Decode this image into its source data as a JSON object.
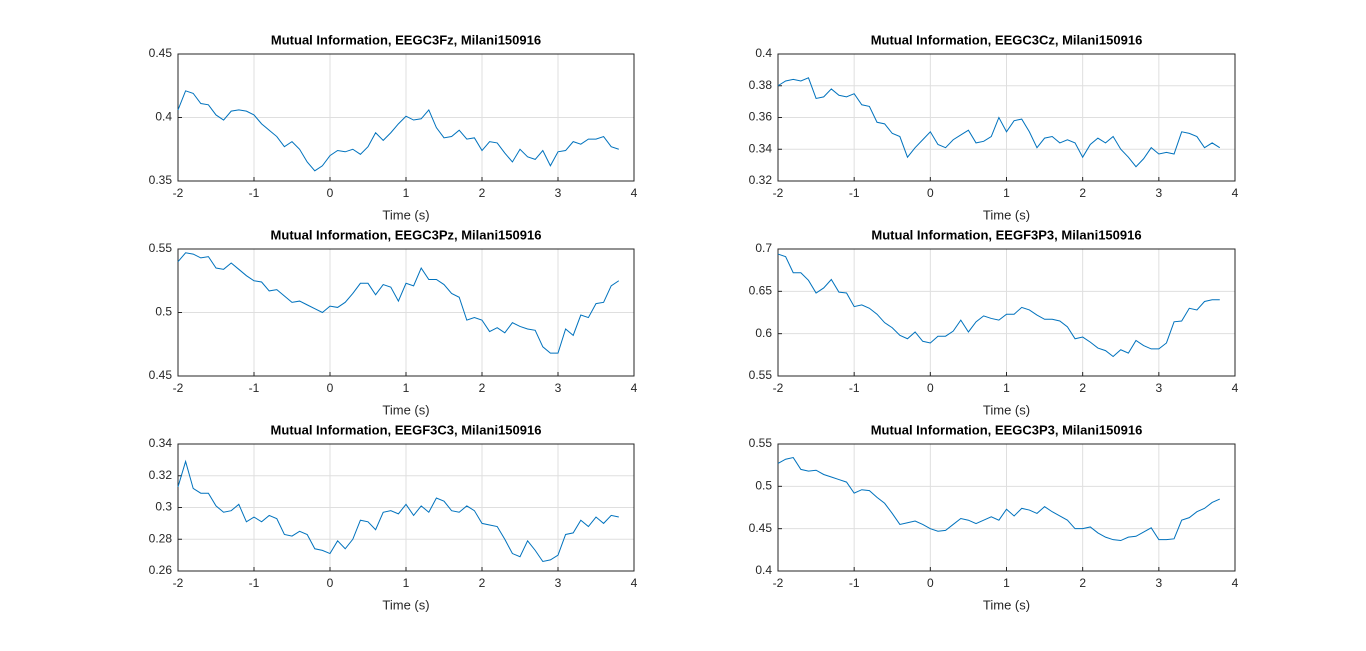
{
  "chart_data": [
    {
      "type": "line",
      "title": "Mutual Information, EEGC3Fz, Milani150916",
      "xlabel": "Time (s)",
      "color": "#0072bd",
      "grid": true,
      "x": [
        -2,
        -1.9,
        -1.8,
        -1.7,
        -1.6,
        -1.5,
        -1.4,
        -1.3,
        -1.2,
        -1.1,
        -1,
        -0.9,
        -0.8,
        -0.7,
        -0.6,
        -0.5,
        -0.4,
        -0.3,
        -0.2,
        -0.1,
        0,
        0.1,
        0.2,
        0.3,
        0.4,
        0.5,
        0.6,
        0.7,
        0.8,
        0.9,
        1,
        1.1,
        1.2,
        1.3,
        1.4,
        1.5,
        1.6,
        1.7,
        1.8,
        1.9,
        2,
        2.1,
        2.2,
        2.3,
        2.4,
        2.5,
        2.6,
        2.7,
        2.8,
        2.9,
        3,
        3.1,
        3.2,
        3.3,
        3.4,
        3.5,
        3.6,
        3.7,
        3.8
      ],
      "values": [
        0.406,
        0.421,
        0.419,
        0.411,
        0.41,
        0.402,
        0.398,
        0.405,
        0.406,
        0.405,
        0.402,
        0.395,
        0.39,
        0.385,
        0.377,
        0.381,
        0.375,
        0.365,
        0.358,
        0.362,
        0.37,
        0.374,
        0.373,
        0.375,
        0.371,
        0.377,
        0.388,
        0.382,
        0.388,
        0.395,
        0.401,
        0.398,
        0.399,
        0.406,
        0.392,
        0.384,
        0.385,
        0.39,
        0.383,
        0.384,
        0.374,
        0.381,
        0.38,
        0.372,
        0.365,
        0.375,
        0.369,
        0.367,
        0.374,
        0.362,
        0.373,
        0.374,
        0.381,
        0.379,
        0.383,
        0.383,
        0.385,
        0.377,
        0.375
      ],
      "xlim": [
        -2,
        4
      ],
      "xticks": [
        -2,
        -1,
        0,
        1,
        2,
        3,
        4
      ],
      "ylim": [
        0.35,
        0.45
      ],
      "yticks": [
        0.35,
        0.4,
        0.45
      ]
    },
    {
      "type": "line",
      "title": "Mutual Information, EEGC3Cz, Milani150916",
      "xlabel": "Time (s)",
      "color": "#0072bd",
      "grid": true,
      "x": [
        -2,
        -1.9,
        -1.8,
        -1.7,
        -1.6,
        -1.5,
        -1.4,
        -1.3,
        -1.2,
        -1.1,
        -1,
        -0.9,
        -0.8,
        -0.7,
        -0.6,
        -0.5,
        -0.4,
        -0.3,
        -0.2,
        -0.1,
        0,
        0.1,
        0.2,
        0.3,
        0.4,
        0.5,
        0.6,
        0.7,
        0.8,
        0.9,
        1,
        1.1,
        1.2,
        1.3,
        1.4,
        1.5,
        1.6,
        1.7,
        1.8,
        1.9,
        2,
        2.1,
        2.2,
        2.3,
        2.4,
        2.5,
        2.6,
        2.7,
        2.8,
        2.9,
        3,
        3.1,
        3.2,
        3.3,
        3.4,
        3.5,
        3.6,
        3.7,
        3.8
      ],
      "values": [
        0.38,
        0.383,
        0.384,
        0.383,
        0.385,
        0.372,
        0.373,
        0.378,
        0.374,
        0.373,
        0.375,
        0.368,
        0.367,
        0.357,
        0.356,
        0.35,
        0.348,
        0.335,
        0.341,
        0.346,
        0.351,
        0.343,
        0.341,
        0.346,
        0.349,
        0.352,
        0.344,
        0.345,
        0.348,
        0.36,
        0.351,
        0.358,
        0.359,
        0.351,
        0.341,
        0.347,
        0.348,
        0.344,
        0.346,
        0.344,
        0.335,
        0.343,
        0.347,
        0.344,
        0.348,
        0.34,
        0.335,
        0.329,
        0.334,
        0.341,
        0.337,
        0.338,
        0.337,
        0.351,
        0.35,
        0.348,
        0.341,
        0.344,
        0.341
      ],
      "xlim": [
        -2,
        4
      ],
      "xticks": [
        -2,
        -1,
        0,
        1,
        2,
        3,
        4
      ],
      "ylim": [
        0.32,
        0.4
      ],
      "yticks": [
        0.32,
        0.34,
        0.36,
        0.38,
        0.4
      ]
    },
    {
      "type": "line",
      "title": "Mutual Information, EEGC3Pz, Milani150916",
      "xlabel": "Time (s)",
      "color": "#0072bd",
      "grid": true,
      "x": [
        -2,
        -1.9,
        -1.8,
        -1.7,
        -1.6,
        -1.5,
        -1.4,
        -1.3,
        -1.2,
        -1.1,
        -1,
        -0.9,
        -0.8,
        -0.7,
        -0.6,
        -0.5,
        -0.4,
        -0.3,
        -0.2,
        -0.1,
        0,
        0.1,
        0.2,
        0.3,
        0.4,
        0.5,
        0.6,
        0.7,
        0.8,
        0.9,
        1,
        1.1,
        1.2,
        1.3,
        1.4,
        1.5,
        1.6,
        1.7,
        1.8,
        1.9,
        2,
        2.1,
        2.2,
        2.3,
        2.4,
        2.5,
        2.6,
        2.7,
        2.8,
        2.9,
        3,
        3.1,
        3.2,
        3.3,
        3.4,
        3.5,
        3.6,
        3.7,
        3.8
      ],
      "values": [
        0.54,
        0.547,
        0.546,
        0.543,
        0.544,
        0.535,
        0.534,
        0.539,
        0.534,
        0.529,
        0.525,
        0.524,
        0.517,
        0.518,
        0.513,
        0.508,
        0.509,
        0.506,
        0.503,
        0.5,
        0.505,
        0.504,
        0.508,
        0.515,
        0.523,
        0.523,
        0.514,
        0.522,
        0.52,
        0.509,
        0.523,
        0.521,
        0.535,
        0.526,
        0.526,
        0.522,
        0.515,
        0.512,
        0.494,
        0.496,
        0.494,
        0.485,
        0.488,
        0.484,
        0.492,
        0.489,
        0.487,
        0.486,
        0.473,
        0.468,
        0.468,
        0.487,
        0.482,
        0.498,
        0.496,
        0.507,
        0.508,
        0.521,
        0.525
      ],
      "xlim": [
        -2,
        4
      ],
      "xticks": [
        -2,
        -1,
        0,
        1,
        2,
        3,
        4
      ],
      "ylim": [
        0.45,
        0.55
      ],
      "yticks": [
        0.45,
        0.5,
        0.55
      ]
    },
    {
      "type": "line",
      "title": "Mutual Information, EEGF3P3, Milani150916",
      "xlabel": "Time (s)",
      "color": "#0072bd",
      "grid": true,
      "x": [
        -2,
        -1.9,
        -1.8,
        -1.7,
        -1.6,
        -1.5,
        -1.4,
        -1.3,
        -1.2,
        -1.1,
        -1,
        -0.9,
        -0.8,
        -0.7,
        -0.6,
        -0.5,
        -0.4,
        -0.3,
        -0.2,
        -0.1,
        0,
        0.1,
        0.2,
        0.3,
        0.4,
        0.5,
        0.6,
        0.7,
        0.8,
        0.9,
        1,
        1.1,
        1.2,
        1.3,
        1.4,
        1.5,
        1.6,
        1.7,
        1.8,
        1.9,
        2,
        2.1,
        2.2,
        2.3,
        2.4,
        2.5,
        2.6,
        2.7,
        2.8,
        2.9,
        3,
        3.1,
        3.2,
        3.3,
        3.4,
        3.5,
        3.6,
        3.7,
        3.8
      ],
      "values": [
        0.694,
        0.691,
        0.672,
        0.672,
        0.663,
        0.648,
        0.654,
        0.664,
        0.649,
        0.648,
        0.632,
        0.634,
        0.63,
        0.623,
        0.613,
        0.607,
        0.598,
        0.594,
        0.602,
        0.591,
        0.589,
        0.597,
        0.597,
        0.603,
        0.616,
        0.602,
        0.614,
        0.621,
        0.618,
        0.616,
        0.623,
        0.623,
        0.631,
        0.628,
        0.622,
        0.617,
        0.617,
        0.615,
        0.608,
        0.594,
        0.596,
        0.59,
        0.583,
        0.58,
        0.573,
        0.581,
        0.577,
        0.592,
        0.586,
        0.582,
        0.582,
        0.589,
        0.614,
        0.615,
        0.63,
        0.628,
        0.638,
        0.64,
        0.64
      ],
      "xlim": [
        -2,
        4
      ],
      "xticks": [
        -2,
        -1,
        0,
        1,
        2,
        3,
        4
      ],
      "ylim": [
        0.55,
        0.7
      ],
      "yticks": [
        0.55,
        0.6,
        0.65,
        0.7
      ]
    },
    {
      "type": "line",
      "title": "Mutual Information, EEGF3C3, Milani150916",
      "xlabel": "Time (s)",
      "color": "#0072bd",
      "grid": true,
      "x": [
        -2,
        -1.9,
        -1.8,
        -1.7,
        -1.6,
        -1.5,
        -1.4,
        -1.3,
        -1.2,
        -1.1,
        -1,
        -0.9,
        -0.8,
        -0.7,
        -0.6,
        -0.5,
        -0.4,
        -0.3,
        -0.2,
        -0.1,
        0,
        0.1,
        0.2,
        0.3,
        0.4,
        0.5,
        0.6,
        0.7,
        0.8,
        0.9,
        1,
        1.1,
        1.2,
        1.3,
        1.4,
        1.5,
        1.6,
        1.7,
        1.8,
        1.9,
        2,
        2.1,
        2.2,
        2.3,
        2.4,
        2.5,
        2.6,
        2.7,
        2.8,
        2.9,
        3,
        3.1,
        3.2,
        3.3,
        3.4,
        3.5,
        3.6,
        3.7,
        3.8
      ],
      "values": [
        0.313,
        0.329,
        0.312,
        0.309,
        0.309,
        0.301,
        0.297,
        0.298,
        0.302,
        0.291,
        0.294,
        0.291,
        0.295,
        0.293,
        0.283,
        0.282,
        0.285,
        0.283,
        0.274,
        0.273,
        0.271,
        0.279,
        0.274,
        0.28,
        0.292,
        0.291,
        0.286,
        0.297,
        0.298,
        0.296,
        0.302,
        0.295,
        0.301,
        0.297,
        0.306,
        0.304,
        0.298,
        0.297,
        0.301,
        0.298,
        0.29,
        0.289,
        0.288,
        0.28,
        0.271,
        0.269,
        0.279,
        0.273,
        0.266,
        0.267,
        0.27,
        0.283,
        0.284,
        0.292,
        0.288,
        0.294,
        0.29,
        0.295,
        0.294
      ],
      "xlim": [
        -2,
        4
      ],
      "xticks": [
        -2,
        -1,
        0,
        1,
        2,
        3,
        4
      ],
      "ylim": [
        0.26,
        0.34
      ],
      "yticks": [
        0.26,
        0.28,
        0.3,
        0.32,
        0.34
      ]
    },
    {
      "type": "line",
      "title": "Mutual Information, EEGC3P3, Milani150916",
      "xlabel": "Time (s)",
      "color": "#0072bd",
      "grid": true,
      "x": [
        -2,
        -1.9,
        -1.8,
        -1.7,
        -1.6,
        -1.5,
        -1.4,
        -1.3,
        -1.2,
        -1.1,
        -1,
        -0.9,
        -0.8,
        -0.7,
        -0.6,
        -0.5,
        -0.4,
        -0.3,
        -0.2,
        -0.1,
        0,
        0.1,
        0.2,
        0.3,
        0.4,
        0.5,
        0.6,
        0.7,
        0.8,
        0.9,
        1,
        1.1,
        1.2,
        1.3,
        1.4,
        1.5,
        1.6,
        1.7,
        1.8,
        1.9,
        2,
        2.1,
        2.2,
        2.3,
        2.4,
        2.5,
        2.6,
        2.7,
        2.8,
        2.9,
        3,
        3.1,
        3.2,
        3.3,
        3.4,
        3.5,
        3.6,
        3.7,
        3.8
      ],
      "values": [
        0.527,
        0.532,
        0.534,
        0.52,
        0.518,
        0.519,
        0.514,
        0.511,
        0.508,
        0.505,
        0.492,
        0.496,
        0.495,
        0.487,
        0.48,
        0.468,
        0.455,
        0.457,
        0.459,
        0.455,
        0.45,
        0.447,
        0.448,
        0.455,
        0.462,
        0.46,
        0.456,
        0.46,
        0.464,
        0.46,
        0.473,
        0.465,
        0.474,
        0.472,
        0.468,
        0.476,
        0.47,
        0.465,
        0.46,
        0.45,
        0.45,
        0.452,
        0.445,
        0.44,
        0.437,
        0.436,
        0.44,
        0.441,
        0.446,
        0.451,
        0.437,
        0.437,
        0.438,
        0.46,
        0.463,
        0.47,
        0.474,
        0.481,
        0.485
      ],
      "xlim": [
        -2,
        4
      ],
      "xticks": [
        -2,
        -1,
        0,
        1,
        2,
        3,
        4
      ],
      "ylim": [
        0.4,
        0.55
      ],
      "yticks": [
        0.4,
        0.45,
        0.5,
        0.55
      ]
    }
  ]
}
